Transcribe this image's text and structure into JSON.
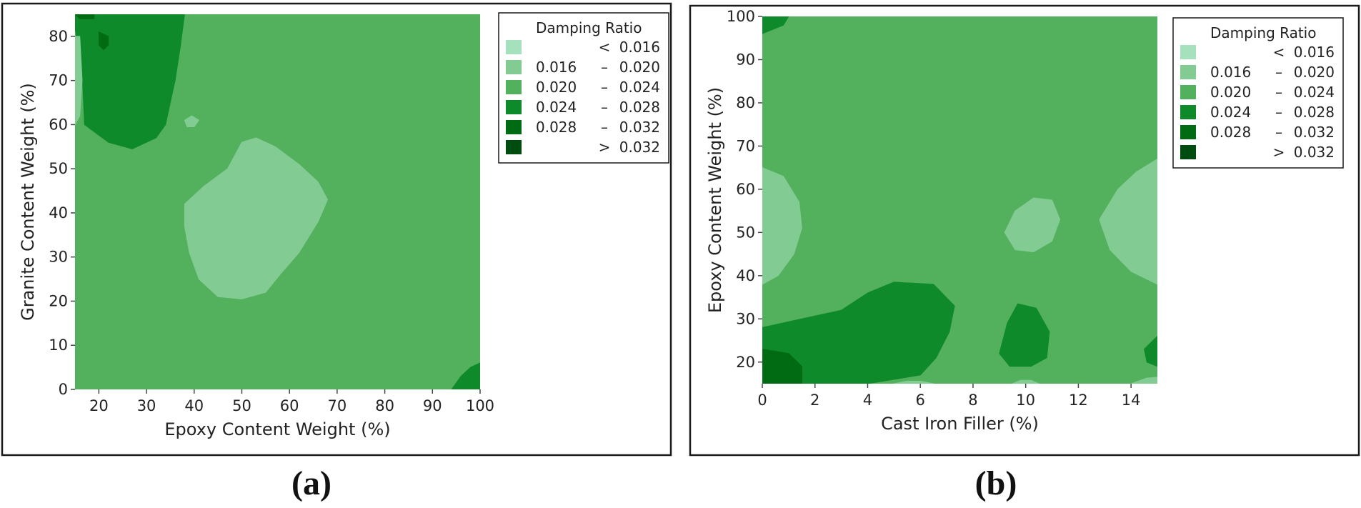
{
  "legend": {
    "title": "Damping Ratio",
    "bins": [
      {
        "op": "<",
        "low": "",
        "high": "0.016",
        "color": "#a6e1be"
      },
      {
        "op": "",
        "low": "0.016",
        "high": "0.020",
        "color": "#82cc93"
      },
      {
        "op": "",
        "low": "0.020",
        "high": "0.024",
        "color": "#53b05d"
      },
      {
        "op": "",
        "low": "0.024",
        "high": "0.028",
        "color": "#0f8a2b"
      },
      {
        "op": "",
        "low": "0.028",
        "high": "0.032",
        "color": "#006b13"
      },
      {
        "op": ">",
        "low": "",
        "high": "0.032",
        "color": "#004c10"
      }
    ],
    "dash": "–"
  },
  "captions": {
    "a": "(a)",
    "b": "(b)"
  },
  "chart_data": [
    {
      "id": "a",
      "type": "contour",
      "title": "",
      "xlabel": "Epoxy Content Weight (%)",
      "ylabel": "Granite Content Weight (%)",
      "xlim": [
        15,
        100
      ],
      "ylim": [
        0,
        85
      ],
      "xticks": [
        20,
        30,
        40,
        50,
        60,
        70,
        80,
        90,
        100
      ],
      "yticks": [
        0,
        10,
        20,
        30,
        40,
        50,
        60,
        70,
        80
      ],
      "background_level": 2,
      "regions": [
        {
          "level": 3,
          "points": [
            [
              15,
              85
            ],
            [
              38,
              85
            ],
            [
              37,
              77
            ],
            [
              36,
              70
            ],
            [
              35,
              65
            ],
            [
              34,
              60
            ],
            [
              32,
              57
            ],
            [
              27,
              54.5
            ],
            [
              22,
              56
            ],
            [
              17,
              60
            ],
            [
              16.5,
              72
            ],
            [
              15,
              82
            ]
          ]
        },
        {
          "level": 4,
          "points": [
            [
              20,
              81
            ],
            [
              22,
              80
            ],
            [
              22,
              78
            ],
            [
              21,
              77
            ],
            [
              20,
              78
            ]
          ]
        },
        {
          "level": 4,
          "points": [
            [
              15,
              85
            ],
            [
              19,
              85
            ],
            [
              19,
              84
            ],
            [
              16,
              84
            ]
          ]
        },
        {
          "level": 1,
          "points": [
            [
              15,
              80
            ],
            [
              16,
              80
            ],
            [
              16.5,
              70
            ],
            [
              16,
              62
            ],
            [
              15,
              60
            ]
          ]
        },
        {
          "level": 1,
          "points": [
            [
              38,
              61
            ],
            [
              39.5,
              62
            ],
            [
              41,
              61
            ],
            [
              40,
              59.5
            ],
            [
              38.5,
              59.5
            ]
          ]
        },
        {
          "level": 1,
          "points": [
            [
              38,
              42
            ],
            [
              42,
              46
            ],
            [
              47,
              50
            ],
            [
              50,
              56
            ],
            [
              53,
              57
            ],
            [
              57,
              55
            ],
            [
              62,
              51
            ],
            [
              66,
              47
            ],
            [
              68,
              43
            ],
            [
              66,
              38
            ],
            [
              62,
              31
            ],
            [
              58,
              26
            ],
            [
              55,
              22
            ],
            [
              50,
              20.5
            ],
            [
              45,
              21
            ],
            [
              41,
              25
            ],
            [
              39,
              31
            ],
            [
              38,
              37
            ]
          ]
        },
        {
          "level": 3,
          "points": [
            [
              94,
              0
            ],
            [
              100,
              0
            ],
            [
              100,
              6
            ],
            [
              98,
              5
            ],
            [
              96,
              3
            ]
          ]
        }
      ]
    },
    {
      "id": "b",
      "type": "contour",
      "title": "",
      "xlabel": "Cast Iron Filler (%)",
      "ylabel": "Epoxy Content Weight (%)",
      "xlim": [
        0,
        15
      ],
      "ylim": [
        15,
        100
      ],
      "xticks": [
        0,
        2,
        4,
        6,
        8,
        10,
        12,
        14
      ],
      "yticks": [
        20,
        30,
        40,
        50,
        60,
        70,
        80,
        90,
        100
      ],
      "background_level": 2,
      "regions": [
        {
          "level": 3,
          "points": [
            [
              0,
              100
            ],
            [
              1,
              100
            ],
            [
              0.8,
              98
            ],
            [
              0,
              96
            ]
          ]
        },
        {
          "level": 1,
          "points": [
            [
              0,
              65
            ],
            [
              0.8,
              63
            ],
            [
              1.4,
              57
            ],
            [
              1.5,
              51
            ],
            [
              1.2,
              45
            ],
            [
              0.6,
              40
            ],
            [
              0,
              38
            ]
          ]
        },
        {
          "level": 1,
          "points": [
            [
              9.2,
              50
            ],
            [
              9.6,
              55
            ],
            [
              10.3,
              58
            ],
            [
              11,
              57.5
            ],
            [
              11.3,
              53
            ],
            [
              11,
              48
            ],
            [
              10.3,
              45.5
            ],
            [
              9.6,
              46
            ]
          ]
        },
        {
          "level": 1,
          "points": [
            [
              15,
              67
            ],
            [
              14.2,
              64
            ],
            [
              13.5,
              60
            ],
            [
              12.8,
              53
            ],
            [
              13.2,
              46
            ],
            [
              14,
              41
            ],
            [
              15,
              38
            ]
          ]
        },
        {
          "level": 3,
          "points": [
            [
              0,
              28
            ],
            [
              1.5,
              30
            ],
            [
              3,
              32
            ],
            [
              4,
              36
            ],
            [
              5,
              38.5
            ],
            [
              6.5,
              38
            ],
            [
              7.3,
              33
            ],
            [
              7.1,
              27
            ],
            [
              6.6,
              21
            ],
            [
              6,
              17
            ],
            [
              4,
              15
            ],
            [
              0,
              15
            ]
          ]
        },
        {
          "level": 4,
          "points": [
            [
              0,
              23
            ],
            [
              1,
              22
            ],
            [
              1.5,
              19
            ],
            [
              1.5,
              15
            ],
            [
              0,
              15
            ]
          ]
        },
        {
          "level": 3,
          "points": [
            [
              9,
              22
            ],
            [
              9.3,
              29
            ],
            [
              9.7,
              33.5
            ],
            [
              10.4,
              32.5
            ],
            [
              10.9,
              27
            ],
            [
              10.8,
              21
            ],
            [
              10.2,
              19
            ],
            [
              9.4,
              19
            ]
          ]
        },
        {
          "level": 3,
          "points": [
            [
              15,
              26
            ],
            [
              14.5,
              23
            ],
            [
              14.6,
              20
            ],
            [
              15,
              19
            ]
          ]
        },
        {
          "level": 1,
          "points": [
            [
              14,
              15
            ],
            [
              15,
              15
            ],
            [
              15,
              16.5
            ],
            [
              14.6,
              16.3
            ]
          ]
        },
        {
          "level": 1,
          "points": [
            [
              9.5,
              15
            ],
            [
              10.5,
              15
            ],
            [
              10.2,
              15.8
            ],
            [
              9.8,
              15.8
            ]
          ]
        },
        {
          "level": 1,
          "points": [
            [
              5,
              15
            ],
            [
              6.5,
              15
            ],
            [
              6,
              15.6
            ],
            [
              5.5,
              15.6
            ]
          ]
        }
      ]
    }
  ]
}
